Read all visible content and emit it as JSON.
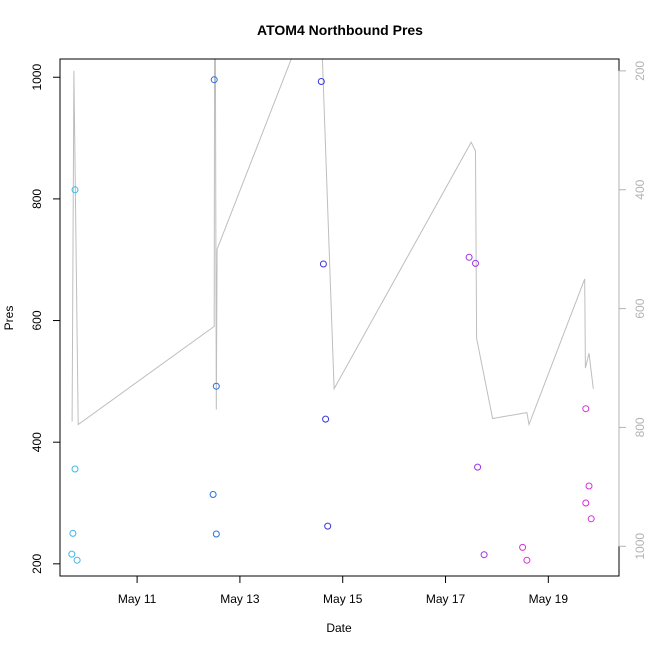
{
  "chart_data": {
    "type": "scatter",
    "title": "ATOM4 Northbound Pres",
    "xlabel": "Date",
    "ylabel": "Pres",
    "x_ticks": [
      {
        "date": "2023-05-11",
        "label": "May 11"
      },
      {
        "date": "2023-05-13",
        "label": "May 13"
      },
      {
        "date": "2023-05-15",
        "label": "May 15"
      },
      {
        "date": "2023-05-17",
        "label": "May 17"
      },
      {
        "date": "2023-05-19",
        "label": "May 19"
      }
    ],
    "xlim": [
      "2023-05-09 12:00",
      "2023-05-20 09:00"
    ],
    "y_ticks": [
      "200",
      "400",
      "600",
      "800",
      "1000"
    ],
    "ylim": [
      180,
      1030
    ],
    "y2_ticks": [
      "200",
      "400",
      "600",
      "800",
      "1000"
    ],
    "y2lim_inverted": [
      1050,
      180
    ],
    "grid": false,
    "colors": {
      "line": "#bebebe",
      "right_axis": "#b3b3b3",
      "axis": "#000000"
    },
    "series": [
      {
        "color": "#3fb8e8",
        "points": [
          {
            "x": "2023-05-09 19:00",
            "y": 815
          },
          {
            "x": "2023-05-09 19:00",
            "y": 356
          },
          {
            "x": "2023-05-09 18:00",
            "y": 250
          },
          {
            "x": "2023-05-09 17:30",
            "y": 216
          },
          {
            "x": "2023-05-09 20:00",
            "y": 206
          }
        ]
      },
      {
        "color": "#2a6fe0",
        "points": [
          {
            "x": "2023-05-12 12:00",
            "y": 996
          },
          {
            "x": "2023-05-12 11:30",
            "y": 314
          },
          {
            "x": "2023-05-12 13:00",
            "y": 492
          },
          {
            "x": "2023-05-12 13:00",
            "y": 249
          }
        ]
      },
      {
        "color": "#3a36d8",
        "points": [
          {
            "x": "2023-05-14 14:00",
            "y": 993
          },
          {
            "x": "2023-05-14 15:00",
            "y": 693
          },
          {
            "x": "2023-05-14 16:00",
            "y": 438
          },
          {
            "x": "2023-05-14 17:00",
            "y": 262
          }
        ]
      },
      {
        "color": "#9b33e8",
        "points": [
          {
            "x": "2023-05-17 11:00",
            "y": 704
          },
          {
            "x": "2023-05-17 14:00",
            "y": 694
          },
          {
            "x": "2023-05-17 15:00",
            "y": 359
          },
          {
            "x": "2023-05-17 18:00",
            "y": 215
          }
        ]
      },
      {
        "color": "#d82ed8",
        "points": [
          {
            "x": "2023-05-18 12:00",
            "y": 227
          },
          {
            "x": "2023-05-18 14:00",
            "y": 206
          },
          {
            "x": "2023-05-19 17:30",
            "y": 455
          },
          {
            "x": "2023-05-19 17:30",
            "y": 300
          },
          {
            "x": "2023-05-19 19:00",
            "y": 328
          },
          {
            "x": "2023-05-19 20:00",
            "y": 274
          }
        ]
      }
    ],
    "line_series_right_axis": [
      {
        "x": "2023-05-09 17:40",
        "y": 790
      },
      {
        "x": "2023-05-09 18:30",
        "y": 200
      },
      {
        "x": "2023-05-09 20:30",
        "y": 795
      },
      {
        "x": "2023-05-12 12:00",
        "y": 630
      },
      {
        "x": "2023-05-12 12:10",
        "y": 100
      },
      {
        "x": "2023-05-12 12:30",
        "y": 100
      },
      {
        "x": "2023-05-12 13:00",
        "y": 770
      },
      {
        "x": "2023-05-12 13:20",
        "y": 500
      },
      {
        "x": "2023-05-14 00:00",
        "y": 180
      },
      {
        "x": "2023-05-14 14:30",
        "y": 180
      },
      {
        "x": "2023-05-14 20:00",
        "y": 735
      },
      {
        "x": "2023-05-17 12:00",
        "y": 320
      },
      {
        "x": "2023-05-17 14:00",
        "y": 335
      },
      {
        "x": "2023-05-17 14:30",
        "y": 650
      },
      {
        "x": "2023-05-17 22:00",
        "y": 785
      },
      {
        "x": "2023-05-18 14:00",
        "y": 775
      },
      {
        "x": "2023-05-18 15:00",
        "y": 795
      },
      {
        "x": "2023-05-19 17:00",
        "y": 550
      },
      {
        "x": "2023-05-19 17:20",
        "y": 700
      },
      {
        "x": "2023-05-19 19:00",
        "y": 675
      },
      {
        "x": "2023-05-19 21:00",
        "y": 735
      }
    ]
  }
}
